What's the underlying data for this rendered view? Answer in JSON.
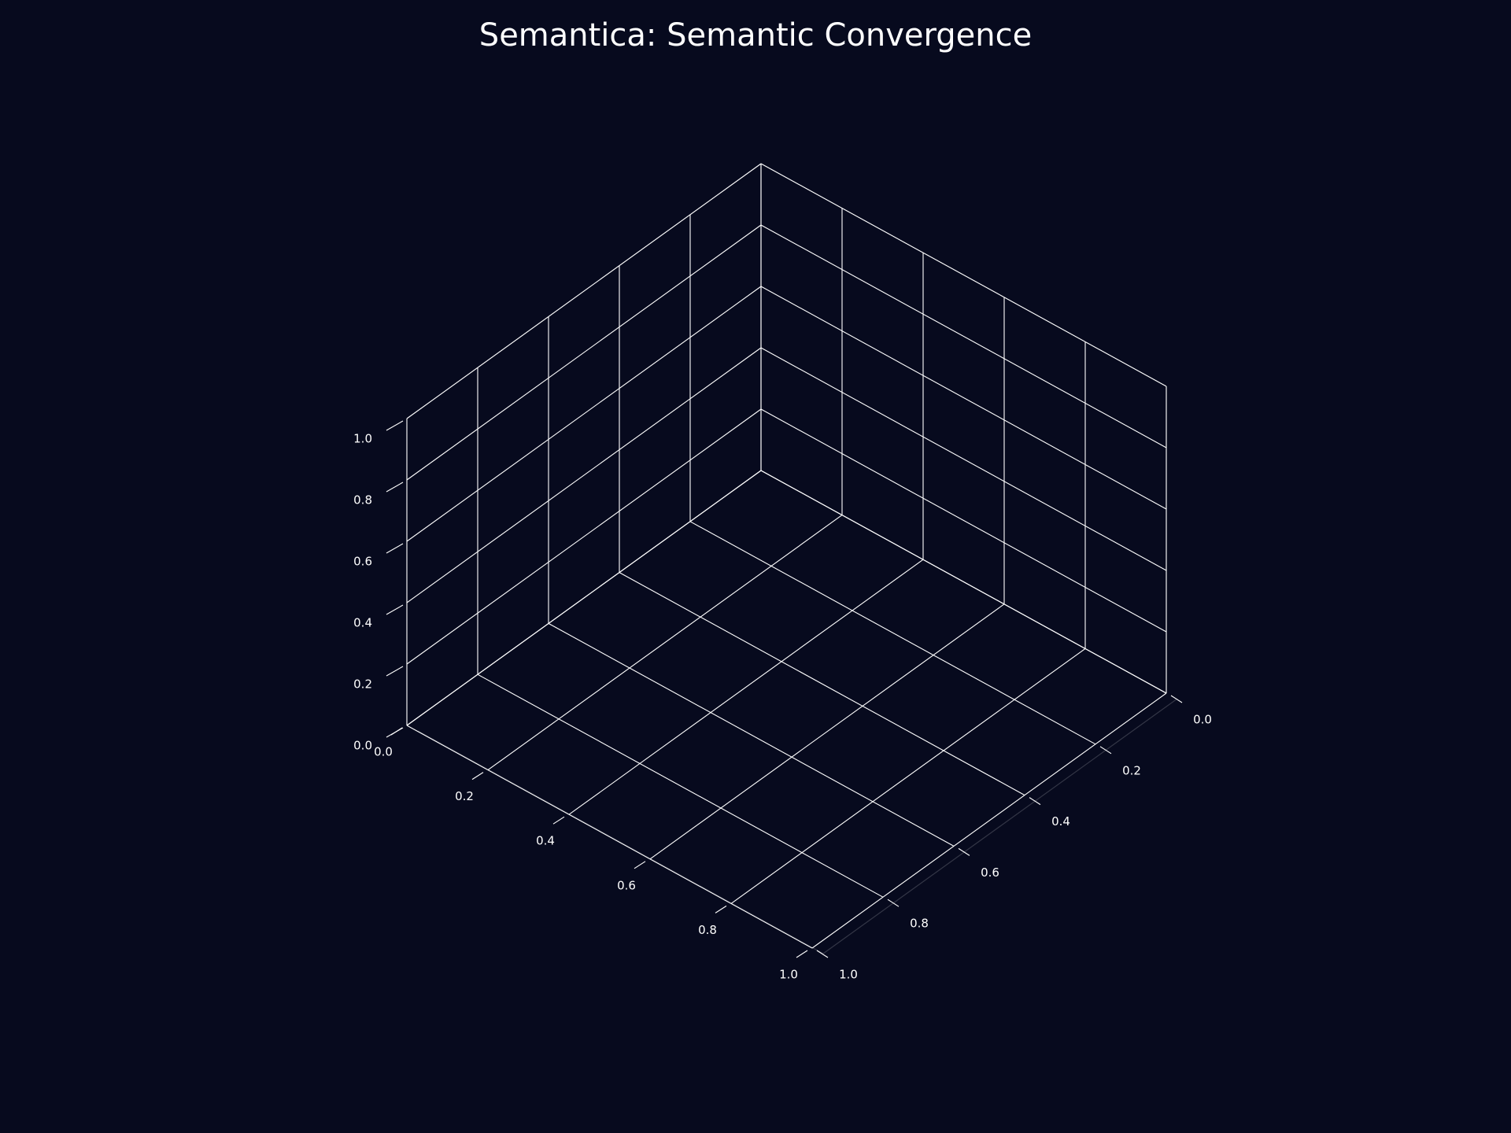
{
  "chart_data": {
    "type": "scatter",
    "title": "Semantica: Semantic Convergence",
    "xlabel": "",
    "ylabel": "",
    "zlabel": "",
    "x": [],
    "y": [],
    "z": [],
    "xlim": [
      0,
      1
    ],
    "ylim": [
      0,
      1
    ],
    "zlim": [
      0,
      1
    ],
    "xticks": [
      "0.0",
      "0.2",
      "0.4",
      "0.6",
      "0.8",
      "1.0"
    ],
    "yticks": [
      "0.0",
      "0.2",
      "0.4",
      "0.6",
      "0.8",
      "1.0"
    ],
    "zticks": [
      "0.0",
      "0.2",
      "0.4",
      "0.6",
      "0.8",
      "1.0"
    ],
    "projection": "3d",
    "grid": true,
    "background_color": "#070a1e",
    "grid_color": "#ffffff"
  }
}
